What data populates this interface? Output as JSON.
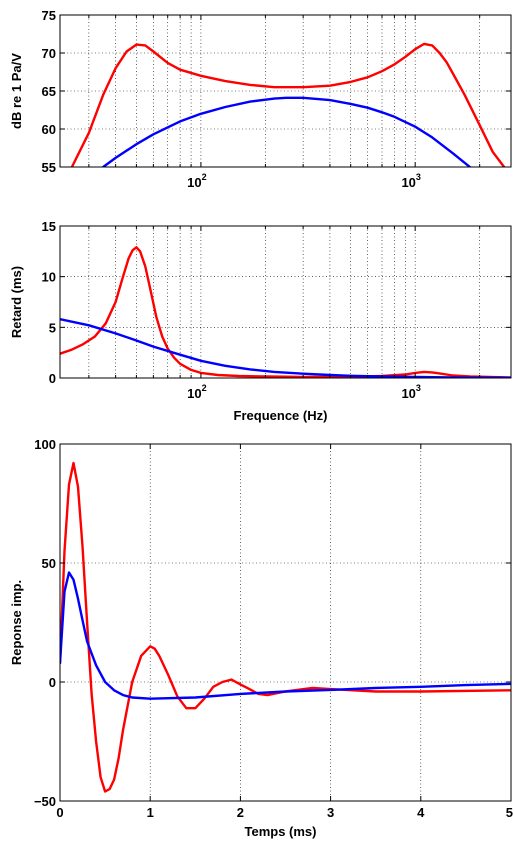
{
  "chart_data": [
    {
      "type": "line",
      "xscale": "log",
      "xlim": [
        22,
        2800
      ],
      "ylim": [
        55,
        75
      ],
      "ylabel": "dB re 1 Pa/V",
      "xlabel": "",
      "yticks": [
        "55",
        "60",
        "65",
        "70",
        "75"
      ],
      "xticks": [
        {
          "base": "10",
          "exp": "2"
        },
        {
          "base": "10",
          "exp": "3"
        }
      ],
      "grid": true,
      "series": [
        {
          "color": "#ff0000",
          "x": [
            25,
            30,
            35,
            40,
            45,
            50,
            55,
            60,
            70,
            80,
            100,
            130,
            170,
            220,
            300,
            400,
            500,
            600,
            700,
            800,
            900,
            1000,
            1100,
            1200,
            1300,
            1400,
            1500,
            1700,
            2000,
            2300,
            2600
          ],
          "y": [
            55,
            59.5,
            64.5,
            68,
            70.2,
            71.1,
            71.0,
            70.2,
            68.7,
            67.8,
            67.0,
            66.3,
            65.8,
            65.5,
            65.5,
            65.7,
            66.2,
            66.8,
            67.6,
            68.5,
            69.5,
            70.5,
            71.2,
            71.0,
            70.0,
            68.8,
            67.3,
            64.5,
            60.5,
            57.0,
            55
          ]
        },
        {
          "color": "#0000ff",
          "x": [
            35,
            40,
            50,
            60,
            80,
            100,
            130,
            170,
            220,
            250,
            300,
            400,
            500,
            600,
            700,
            800,
            1000,
            1200,
            1500,
            1800
          ],
          "y": [
            55,
            56.2,
            58.0,
            59.3,
            61.0,
            62.0,
            62.9,
            63.6,
            64.0,
            64.1,
            64.1,
            63.8,
            63.3,
            62.8,
            62.2,
            61.6,
            60.3,
            58.9,
            56.8,
            55
          ]
        }
      ]
    },
    {
      "type": "line",
      "xscale": "log",
      "xlim": [
        22,
        2800
      ],
      "ylim": [
        0,
        15
      ],
      "ylabel": "Retard (ms)",
      "xlabel": "Frequence (Hz)",
      "yticks": [
        "0",
        "5",
        "10",
        "15"
      ],
      "xticks": [
        {
          "base": "10",
          "exp": "2"
        },
        {
          "base": "10",
          "exp": "3"
        }
      ],
      "grid": true,
      "series": [
        {
          "color": "#ff0000",
          "x": [
            22,
            25,
            28,
            32,
            36,
            40,
            43,
            46,
            48,
            50,
            52,
            55,
            58,
            62,
            66,
            70,
            75,
            80,
            90,
            100,
            120,
            150,
            200,
            300,
            500,
            700,
            900,
            1000,
            1100,
            1200,
            1300,
            1500,
            1800,
            2200,
            2800
          ],
          "y": [
            2.4,
            2.8,
            3.3,
            4.1,
            5.4,
            7.5,
            9.8,
            11.8,
            12.6,
            12.9,
            12.5,
            11.0,
            8.8,
            6.0,
            4.1,
            2.9,
            2.0,
            1.4,
            0.8,
            0.5,
            0.3,
            0.2,
            0.15,
            0.1,
            0.1,
            0.2,
            0.35,
            0.5,
            0.6,
            0.55,
            0.45,
            0.25,
            0.15,
            0.1,
            0.05
          ]
        },
        {
          "color": "#0000ff",
          "x": [
            22,
            30,
            40,
            50,
            60,
            80,
            100,
            130,
            170,
            220,
            300,
            400,
            500,
            700,
            1000,
            1500,
            2000,
            2800
          ],
          "y": [
            5.8,
            5.2,
            4.4,
            3.7,
            3.1,
            2.3,
            1.7,
            1.2,
            0.85,
            0.6,
            0.42,
            0.3,
            0.22,
            0.15,
            0.1,
            0.06,
            0.04,
            0.03
          ]
        }
      ]
    },
    {
      "type": "line",
      "xscale": "linear",
      "xlim": [
        0,
        5
      ],
      "ylim": [
        -50,
        100
      ],
      "ylabel": "Reponse imp.",
      "xlabel": "Temps (ms)",
      "yticks": [
        "−50",
        "0",
        "50",
        "100"
      ],
      "xticks": [
        "0",
        "1",
        "2",
        "3",
        "4",
        "5"
      ],
      "grid": true,
      "series": [
        {
          "color": "#ff0000",
          "x": [
            0,
            0.05,
            0.1,
            0.15,
            0.2,
            0.25,
            0.3,
            0.35,
            0.4,
            0.45,
            0.5,
            0.55,
            0.6,
            0.65,
            0.7,
            0.8,
            0.9,
            1.0,
            1.05,
            1.1,
            1.2,
            1.3,
            1.4,
            1.5,
            1.6,
            1.7,
            1.8,
            1.9,
            2.0,
            2.1,
            2.2,
            2.3,
            2.5,
            2.8,
            3.0,
            3.5,
            4.0,
            5.0
          ],
          "y": [
            8,
            55,
            83,
            92,
            82,
            57,
            25,
            -5,
            -25,
            -40,
            -46,
            -45,
            -41,
            -32,
            -20,
            0,
            11,
            15,
            14,
            11,
            3,
            -6,
            -11,
            -11,
            -7,
            -2,
            0,
            1,
            -1,
            -3,
            -5,
            -5.5,
            -4,
            -2.5,
            -3,
            -4,
            -4,
            -3.5
          ]
        },
        {
          "color": "#0000ff",
          "x": [
            0,
            0.05,
            0.1,
            0.15,
            0.2,
            0.25,
            0.3,
            0.4,
            0.5,
            0.6,
            0.7,
            0.8,
            1.0,
            1.5,
            2.0,
            2.5,
            3.0,
            3.5,
            4.0,
            4.5,
            5.0
          ],
          "y": [
            8,
            38,
            46,
            43,
            35,
            26,
            17,
            7,
            0,
            -3.5,
            -5.5,
            -6.5,
            -7,
            -6.5,
            -5,
            -4,
            -3.3,
            -2.5,
            -2,
            -1.3,
            -0.8
          ]
        }
      ]
    }
  ]
}
